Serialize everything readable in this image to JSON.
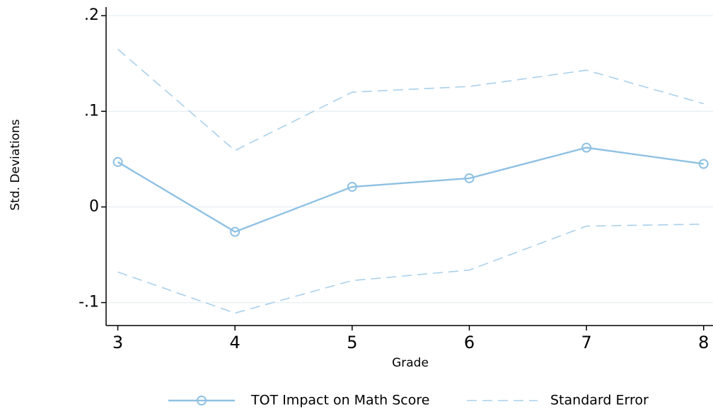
{
  "chart_data": {
    "type": "line",
    "x_label": "Grade",
    "y_label": "Std. Deviations",
    "x": [
      3,
      4,
      5,
      6,
      7,
      8
    ],
    "series": [
      {
        "name": "TOT Impact on Math Score",
        "color": "#8fc1e3",
        "values": [
          0.047,
          -0.026,
          0.021,
          0.03,
          0.062,
          0.045
        ]
      }
    ],
    "band": {
      "name": "Standard Error",
      "color": "#a9d0ec",
      "upper": [
        0.165,
        0.059,
        0.12,
        0.126,
        0.143,
        0.108
      ],
      "lower": [
        -0.068,
        -0.111,
        -0.077,
        -0.066,
        -0.02,
        -0.018
      ]
    },
    "xlim": [
      2.9,
      8.08
    ],
    "ylim": [
      -0.124,
      0.209
    ],
    "xticks": [
      3,
      4,
      5,
      6,
      7,
      8
    ],
    "yticks": [
      {
        "value": -0.1,
        "label": "-.1"
      },
      0,
      {
        "value": 0.1,
        "label": ".1"
      },
      {
        "value": 0.2,
        "label": ".2"
      }
    ],
    "grid": true
  }
}
